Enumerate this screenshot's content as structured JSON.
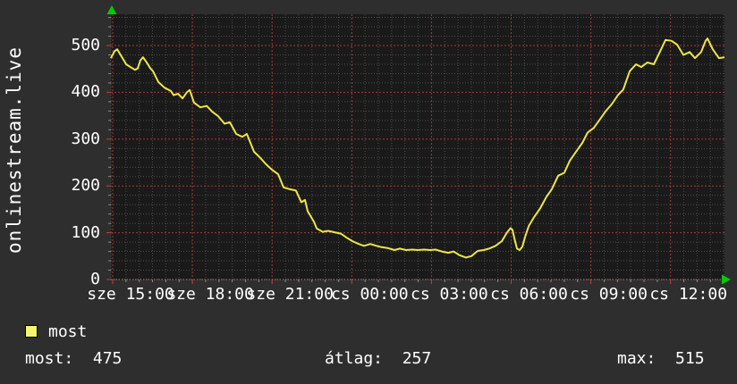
{
  "title": "onlinestream.live",
  "colors": {
    "background": "#2e2e2e",
    "plot_background": "#1a1a1a",
    "grid_minor": "#4c4c4c",
    "grid_major": "#a03838",
    "tick_minor": "#8a8a8a",
    "tick_major": "#c04040",
    "line": "#ece64a",
    "legend_swatch": "#f5f570",
    "text": "#ffffff",
    "arrow": "#00cc00"
  },
  "legend": {
    "label": "most"
  },
  "stats": {
    "most": "most:  475",
    "atlag": "átlag:  257",
    "max": "max:  515"
  },
  "chart_data": {
    "type": "line",
    "title": "onlinestream.live",
    "xlabel": "",
    "ylabel": "",
    "ylim": [
      0,
      570
    ],
    "grid": "on",
    "legend_position": "bottom-left",
    "y_major_ticks": [
      0,
      100,
      200,
      300,
      400,
      500
    ],
    "y_minor_step": 20,
    "x_minor_step_hours": 0.5,
    "x_range_hours": [
      0.93,
      24.03
    ],
    "x_ticks": [
      {
        "t": 1,
        "label": "sze 15:00"
      },
      {
        "t": 4,
        "label": "sze 18:00"
      },
      {
        "t": 7,
        "label": "sze 21:00"
      },
      {
        "t": 10,
        "label": "cs 00:00"
      },
      {
        "t": 13,
        "label": "cs 03:00"
      },
      {
        "t": 16,
        "label": "cs 06:00"
      },
      {
        "t": 19,
        "label": "cs 09:00"
      },
      {
        "t": 22,
        "label": "cs 12:00"
      }
    ],
    "series": [
      {
        "name": "most",
        "stats": {
          "most": 475,
          "atlag": 257,
          "max": 515
        },
        "points": [
          [
            0.93,
            473
          ],
          [
            1.07,
            488
          ],
          [
            1.17,
            492
          ],
          [
            1.34,
            476
          ],
          [
            1.51,
            460
          ],
          [
            1.67,
            454
          ],
          [
            1.84,
            448
          ],
          [
            1.94,
            451
          ],
          [
            2.04,
            468
          ],
          [
            2.14,
            475
          ],
          [
            2.28,
            464
          ],
          [
            2.41,
            452
          ],
          [
            2.52,
            445
          ],
          [
            2.72,
            422
          ],
          [
            2.95,
            410
          ],
          [
            3.19,
            403
          ],
          [
            3.29,
            394
          ],
          [
            3.46,
            397
          ],
          [
            3.63,
            387
          ],
          [
            3.79,
            400
          ],
          [
            3.9,
            405
          ],
          [
            4.06,
            378
          ],
          [
            4.3,
            368
          ],
          [
            4.54,
            371
          ],
          [
            4.74,
            359
          ],
          [
            4.97,
            349
          ],
          [
            5.21,
            333
          ],
          [
            5.41,
            336
          ],
          [
            5.65,
            311
          ],
          [
            5.88,
            305
          ],
          [
            6.05,
            311
          ],
          [
            6.32,
            273
          ],
          [
            6.56,
            260
          ],
          [
            6.76,
            247
          ],
          [
            6.99,
            235
          ],
          [
            7.23,
            225
          ],
          [
            7.43,
            197
          ],
          [
            7.67,
            193
          ],
          [
            7.9,
            190
          ],
          [
            8.1,
            165
          ],
          [
            8.24,
            170
          ],
          [
            8.34,
            146
          ],
          [
            8.58,
            123
          ],
          [
            8.68,
            109
          ],
          [
            8.91,
            102
          ],
          [
            9.11,
            104
          ],
          [
            9.35,
            101
          ],
          [
            9.59,
            98
          ],
          [
            9.79,
            90
          ],
          [
            10.02,
            82
          ],
          [
            10.26,
            76
          ],
          [
            10.46,
            72
          ],
          [
            10.7,
            76
          ],
          [
            10.93,
            72
          ],
          [
            11.13,
            69
          ],
          [
            11.37,
            67
          ],
          [
            11.61,
            63
          ],
          [
            11.81,
            66
          ],
          [
            12.04,
            63
          ],
          [
            12.28,
            64
          ],
          [
            12.48,
            63
          ],
          [
            12.72,
            64
          ],
          [
            12.95,
            63
          ],
          [
            13.15,
            64
          ],
          [
            13.39,
            60
          ],
          [
            13.63,
            57
          ],
          [
            13.83,
            60
          ],
          [
            14.06,
            52
          ],
          [
            14.3,
            47
          ],
          [
            14.5,
            50
          ],
          [
            14.74,
            61
          ],
          [
            14.97,
            63
          ],
          [
            15.17,
            66
          ],
          [
            15.41,
            72
          ],
          [
            15.65,
            82
          ],
          [
            15.85,
            101
          ],
          [
            15.98,
            110
          ],
          [
            16.05,
            106
          ],
          [
            16.12,
            88
          ],
          [
            16.22,
            66
          ],
          [
            16.32,
            63
          ],
          [
            16.42,
            70
          ],
          [
            16.52,
            90
          ],
          [
            16.66,
            114
          ],
          [
            16.86,
            133
          ],
          [
            17.09,
            152
          ],
          [
            17.33,
            177
          ],
          [
            17.53,
            193
          ],
          [
            17.77,
            222
          ],
          [
            18.0,
            228
          ],
          [
            18.21,
            254
          ],
          [
            18.44,
            273
          ],
          [
            18.68,
            292
          ],
          [
            18.88,
            314
          ],
          [
            19.11,
            324
          ],
          [
            19.35,
            343
          ],
          [
            19.55,
            359
          ],
          [
            19.79,
            375
          ],
          [
            20.02,
            394
          ],
          [
            20.22,
            406
          ],
          [
            20.46,
            445
          ],
          [
            20.7,
            460
          ],
          [
            20.9,
            454
          ],
          [
            21.13,
            464
          ],
          [
            21.37,
            460
          ],
          [
            21.57,
            483
          ],
          [
            21.81,
            512
          ],
          [
            22.04,
            510
          ],
          [
            22.25,
            502
          ],
          [
            22.48,
            480
          ],
          [
            22.72,
            486
          ],
          [
            22.92,
            473
          ],
          [
            23.15,
            486
          ],
          [
            23.32,
            510
          ],
          [
            23.39,
            515
          ],
          [
            23.59,
            492
          ],
          [
            23.82,
            473
          ],
          [
            24.03,
            475
          ]
        ]
      }
    ]
  }
}
